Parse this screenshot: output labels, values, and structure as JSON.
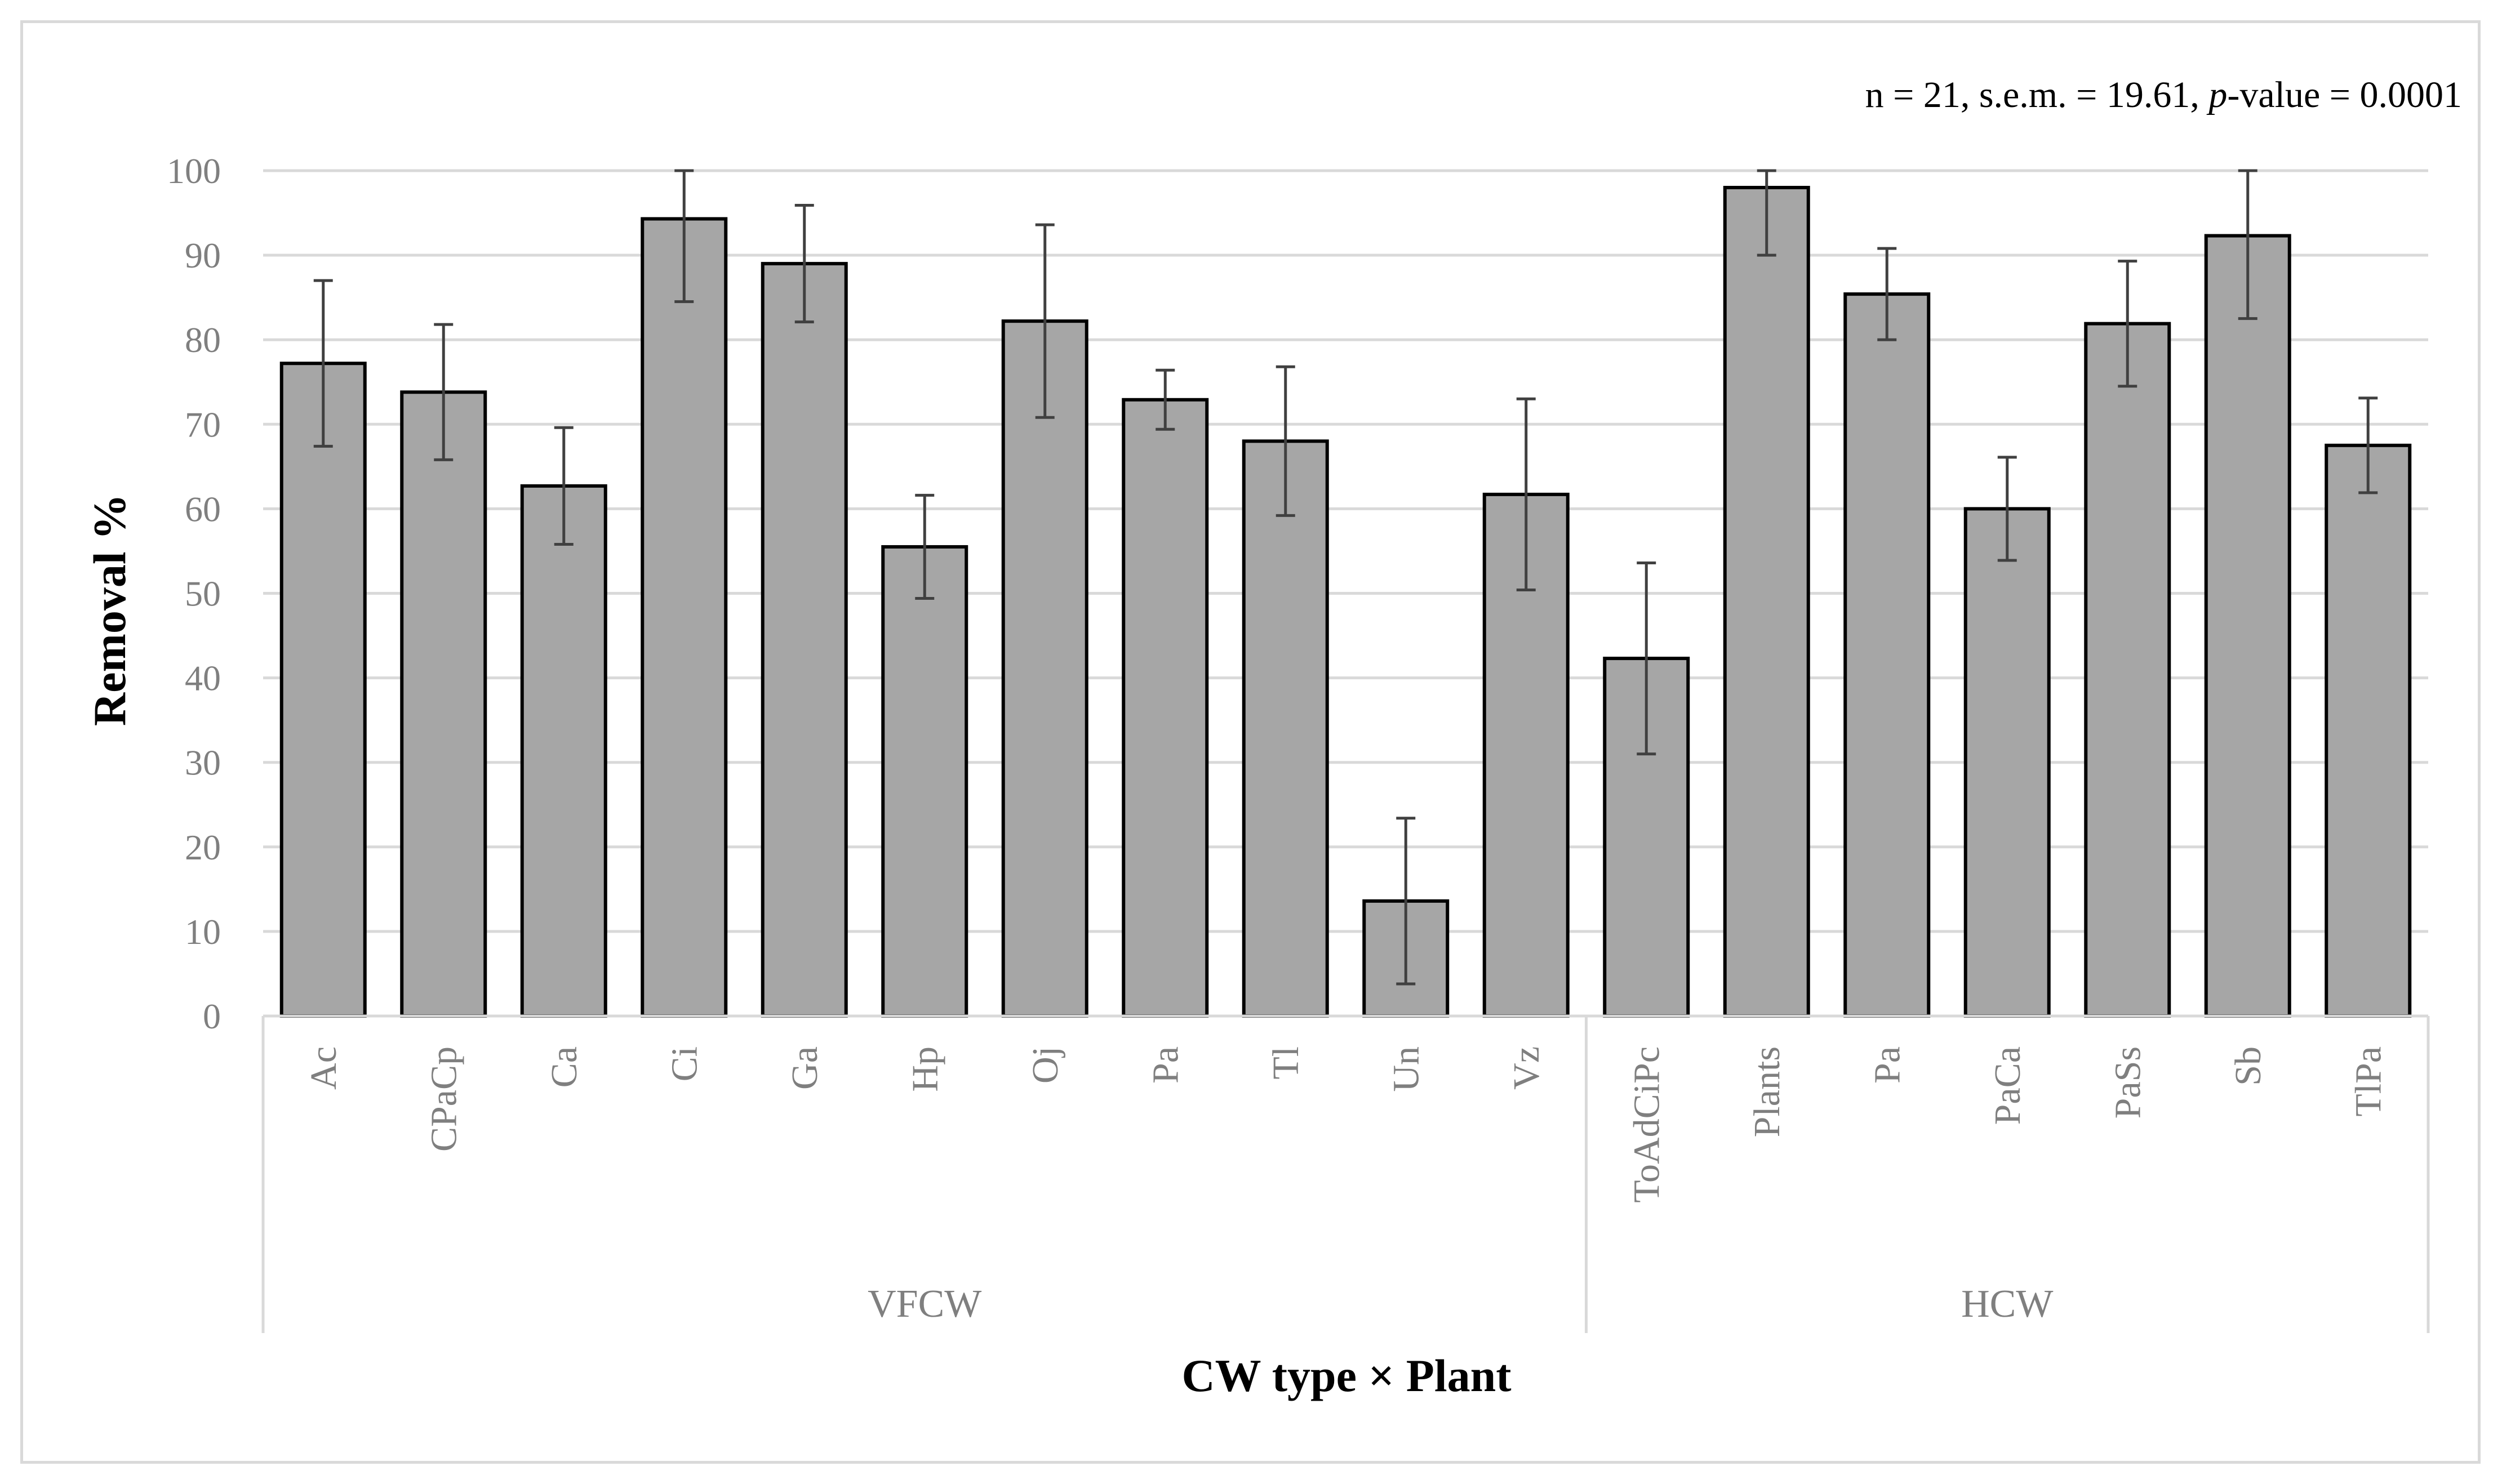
{
  "chart_data": {
    "type": "bar",
    "annotation": {
      "before": "n = 21, s.e.m. = 19.61, ",
      "italic": "p",
      "after": "-value = 0.0001"
    },
    "xlabel": "CW type × Plant",
    "ylabel": "Removal %",
    "ylim": [
      0,
      100
    ],
    "yticks": [
      0,
      10,
      20,
      30,
      40,
      50,
      60,
      70,
      80,
      90,
      100
    ],
    "grid": true,
    "groups": [
      {
        "name": "VFCW",
        "count": 11
      },
      {
        "name": "HCW",
        "count": 7
      }
    ],
    "categories": [
      "Ac",
      "CPaCp",
      "Ca",
      "Ci",
      "Ga",
      "Hp",
      "Oj",
      "Pa",
      "Tl",
      "Un",
      "Vz",
      "ToAdCiPc",
      "Plants",
      "Pa",
      "PaCa",
      "PaSs",
      "Sb",
      "TlPa"
    ],
    "values": [
      77.2,
      73.8,
      62.7,
      94.3,
      89.0,
      55.5,
      82.2,
      72.9,
      68.0,
      13.6,
      61.7,
      42.3,
      98.0,
      85.4,
      60.0,
      81.9,
      92.3,
      67.5
    ],
    "error_high": [
      87.0,
      81.8,
      69.6,
      100,
      95.9,
      61.6,
      93.6,
      76.4,
      76.8,
      23.4,
      73.0,
      53.6,
      100,
      90.8,
      66.1,
      89.3,
      100,
      73.1
    ],
    "error_low": [
      67.4,
      65.8,
      55.8,
      84.5,
      82.1,
      49.4,
      70.8,
      69.4,
      59.2,
      3.8,
      50.4,
      31.0,
      90.0,
      80.0,
      53.9,
      74.5,
      82.5,
      61.9
    ],
    "colors": {
      "bar": "#a6a6a6",
      "bar_edge": "#000000",
      "error": "#404040",
      "grid": "#d9d9d9",
      "tick_text": "#7f7f7f"
    }
  }
}
